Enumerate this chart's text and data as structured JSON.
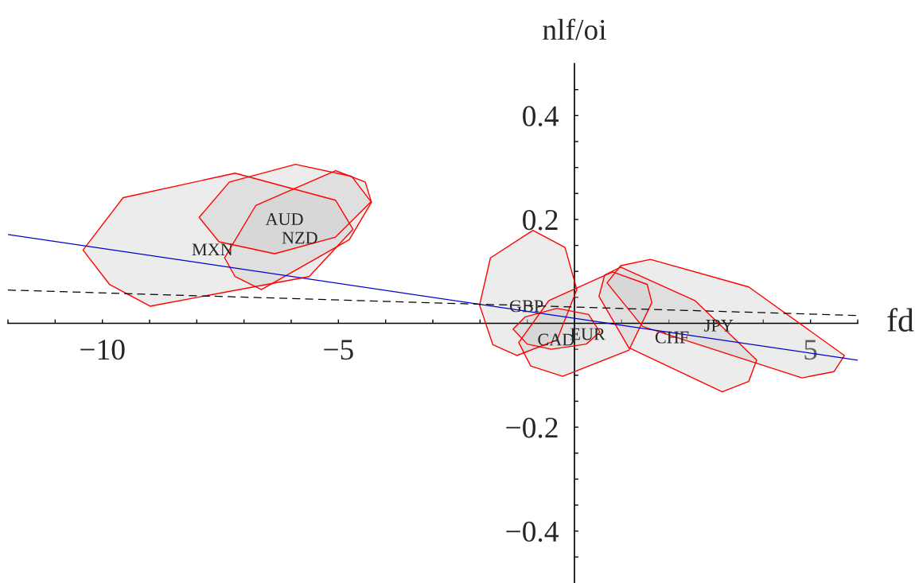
{
  "chart_data": {
    "type": "line",
    "xlabel": "fd",
    "ylabel": "nlf/oi",
    "xlim": [
      -12,
      6
    ],
    "ylim": [
      -0.5,
      0.5
    ],
    "xticks": [
      {
        "value": -12,
        "label": null
      },
      {
        "value": -11,
        "label": null
      },
      {
        "value": -10,
        "label": "−10"
      },
      {
        "value": -9,
        "label": null
      },
      {
        "value": -8,
        "label": null
      },
      {
        "value": -7,
        "label": null
      },
      {
        "value": -6,
        "label": null
      },
      {
        "value": -5,
        "label": "−5"
      },
      {
        "value": -4,
        "label": null
      },
      {
        "value": -3,
        "label": null
      },
      {
        "value": -2,
        "label": null
      },
      {
        "value": -1,
        "label": null
      },
      {
        "value": 1,
        "label": null
      },
      {
        "value": 2,
        "label": null
      },
      {
        "value": 3,
        "label": null
      },
      {
        "value": 4,
        "label": null
      },
      {
        "value": 5,
        "label": "5"
      },
      {
        "value": 6,
        "label": null
      }
    ],
    "yticks": [
      {
        "value": -0.45,
        "label": null
      },
      {
        "value": -0.4,
        "label": "−0.4"
      },
      {
        "value": -0.35,
        "label": null
      },
      {
        "value": -0.3,
        "label": null
      },
      {
        "value": -0.25,
        "label": null
      },
      {
        "value": -0.2,
        "label": "−0.2"
      },
      {
        "value": -0.15,
        "label": null
      },
      {
        "value": -0.1,
        "label": null
      },
      {
        "value": -0.05,
        "label": null
      },
      {
        "value": 0.05,
        "label": null
      },
      {
        "value": 0.1,
        "label": null
      },
      {
        "value": 0.15,
        "label": null
      },
      {
        "value": 0.2,
        "label": "0.2"
      },
      {
        "value": 0.25,
        "label": null
      },
      {
        "value": 0.3,
        "label": null
      },
      {
        "value": 0.35,
        "label": null
      },
      {
        "value": 0.4,
        "label": "0.4"
      },
      {
        "value": 0.45,
        "label": null
      }
    ],
    "grid": false,
    "legend": false,
    "series": [
      {
        "type": "area",
        "name": "MXN",
        "color": "#c8c8c8",
        "x": [
          -10.41,
          -9.85,
          -8.99,
          -5.62,
          -4.69,
          -5.06,
          -7.19,
          -9.56
        ],
        "values": [
          0.141,
          0.075,
          0.033,
          0.09,
          0.181,
          0.237,
          0.289,
          0.242
        ]
      },
      {
        "type": "area",
        "name": "AUD",
        "color": "#c8c8c8",
        "x": [
          -7.95,
          -7.53,
          -6.35,
          -5.06,
          -4.31,
          -4.72,
          -5.91,
          -7.31
        ],
        "values": [
          0.204,
          0.157,
          0.134,
          0.166,
          0.234,
          0.283,
          0.306,
          0.272
        ]
      },
      {
        "type": "area",
        "name": "NZD",
        "color": "#c8c8c8",
        "x": [
          -7.41,
          -7.19,
          -6.63,
          -4.77,
          -4.3,
          -4.43,
          -5.06,
          -6.75
        ],
        "values": [
          0.126,
          0.09,
          0.065,
          0.161,
          0.233,
          0.272,
          0.294,
          0.227
        ]
      },
      {
        "type": "area",
        "name": "GBP",
        "color": "#c8c8c8",
        "x": [
          -2.01,
          -1.73,
          -1.22,
          -0.37,
          0.05,
          -0.2,
          -0.88,
          -1.78
        ],
        "values": [
          0.035,
          -0.041,
          -0.062,
          -0.032,
          0.065,
          0.146,
          0.179,
          0.126
        ]
      },
      {
        "type": "area",
        "name": "EUR",
        "color": "#c8c8c8",
        "x": [
          -1.18,
          -0.93,
          -0.25,
          1.15,
          1.64,
          1.54,
          0.81,
          -0.54
        ],
        "values": [
          -0.037,
          -0.082,
          -0.102,
          -0.052,
          0.04,
          0.075,
          0.099,
          0.044
        ]
      },
      {
        "type": "area",
        "name": "CAD",
        "color": "#c8c8c8",
        "x": [
          -1.3,
          -1.0,
          -0.49,
          0.25,
          0.54,
          0.3,
          -0.37,
          -1.05
        ],
        "values": [
          -0.011,
          -0.04,
          -0.05,
          -0.04,
          -0.017,
          0.017,
          0.029,
          0.012
        ]
      },
      {
        "type": "area",
        "name": "CHF",
        "color": "#c8c8c8",
        "x": [
          0.52,
          1.15,
          3.13,
          3.69,
          3.86,
          2.55,
          0.98,
          0.64
        ],
        "values": [
          0.052,
          -0.047,
          -0.132,
          -0.112,
          -0.071,
          0.044,
          0.108,
          0.093
        ]
      },
      {
        "type": "area",
        "name": "JPY",
        "color": "#c8c8c8",
        "x": [
          0.69,
          1.44,
          4.82,
          5.5,
          5.72,
          3.69,
          1.61,
          0.98
        ],
        "values": [
          0.078,
          -0.006,
          -0.105,
          -0.093,
          -0.062,
          0.07,
          0.123,
          0.111
        ]
      },
      {
        "color": "#0000cc",
        "line_style": "solid",
        "x": [
          -12,
          6
        ],
        "values": [
          0.171,
          -0.071
        ]
      },
      {
        "color": "#000000",
        "line_style": "dashed",
        "x": [
          -12,
          6
        ],
        "values": [
          0.064,
          0.015
        ]
      }
    ]
  }
}
